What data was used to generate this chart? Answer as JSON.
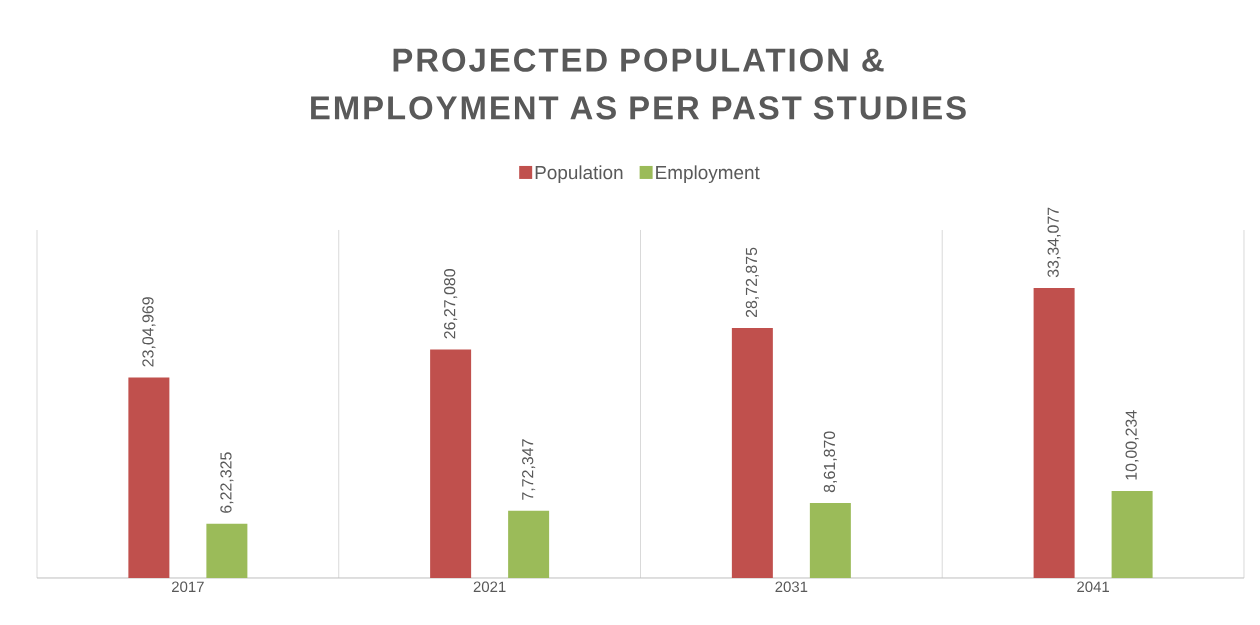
{
  "chart_data": {
    "type": "bar",
    "title": "PROJECTED POPULATION & EMPLOYMENT AS PER PAST STUDIES",
    "categories": [
      "2017",
      "2021",
      "2031",
      "2041"
    ],
    "series": [
      {
        "name": "Population",
        "color": "#c0504d",
        "values": [
          2304969,
          2627080,
          2872875,
          3334077
        ],
        "value_labels": [
          "23,04,969",
          "26,27,080",
          "28,72,875",
          "33,34,077"
        ]
      },
      {
        "name": "Employment",
        "color": "#9bbb59",
        "values": [
          622325,
          772347,
          861870,
          1000234
        ],
        "value_labels": [
          "6,22,325",
          "7,72,347",
          "8,61,870",
          "10,00,234"
        ]
      }
    ],
    "grid": "x",
    "legend": "top",
    "tick_labels": "x"
  }
}
